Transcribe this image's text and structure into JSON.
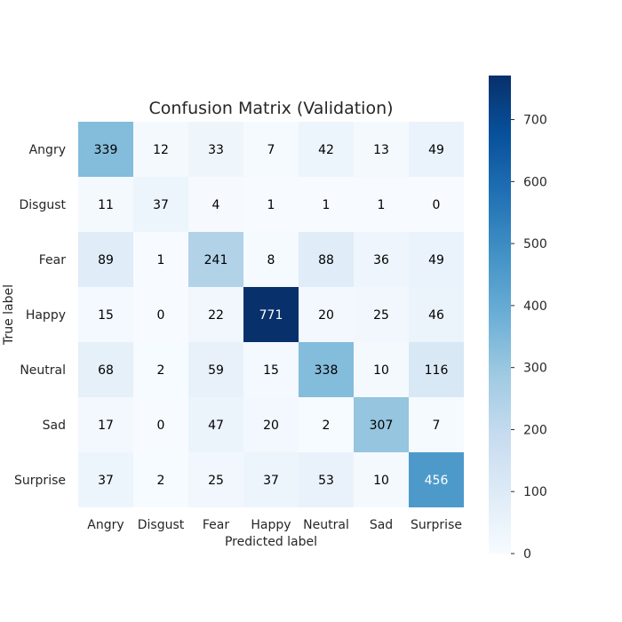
{
  "chart_data": {
    "type": "heatmap",
    "title": "Confusion Matrix (Validation)",
    "xlabel": "Predicted label",
    "ylabel": "True label",
    "x_categories": [
      "Angry",
      "Disgust",
      "Fear",
      "Happy",
      "Neutral",
      "Sad",
      "Surprise"
    ],
    "y_categories": [
      "Angry",
      "Disgust",
      "Fear",
      "Happy",
      "Neutral",
      "Sad",
      "Surprise"
    ],
    "values": [
      [
        339,
        12,
        33,
        7,
        42,
        13,
        49
      ],
      [
        11,
        37,
        4,
        1,
        1,
        1,
        0
      ],
      [
        89,
        1,
        241,
        8,
        88,
        36,
        49
      ],
      [
        15,
        0,
        22,
        771,
        20,
        25,
        46
      ],
      [
        68,
        2,
        59,
        15,
        338,
        10,
        116
      ],
      [
        17,
        0,
        47,
        20,
        2,
        307,
        7
      ],
      [
        37,
        2,
        25,
        37,
        53,
        10,
        456
      ]
    ],
    "colormap": "Blues",
    "vmin": 0,
    "vmax": 771,
    "colorbar_ticks": [
      0,
      100,
      200,
      300,
      400,
      500,
      600,
      700
    ],
    "grid": false,
    "colors": {
      "low": "#f7fbff",
      "high": "#08306b",
      "text_dark": "#000000",
      "text_light": "#ffffff"
    }
  }
}
